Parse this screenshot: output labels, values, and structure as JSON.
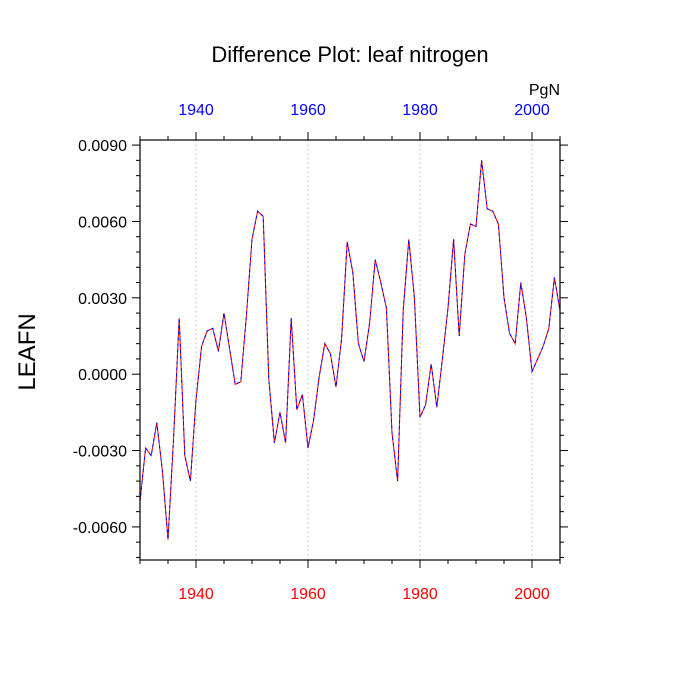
{
  "chart_data": {
    "type": "line",
    "title": "Difference Plot: leaf nitrogen",
    "ylabel": "LEAFN",
    "unit_label": "PgN",
    "xlim": [
      1930,
      2005
    ],
    "ylim": [
      -0.0073,
      0.0092
    ],
    "yticks": [
      -0.006,
      -0.003,
      0.0,
      0.003,
      0.006,
      0.009
    ],
    "ytick_labels": [
      "-0.0060",
      "-0.0030",
      "0.0000",
      "0.0030",
      "0.0060",
      "0.0090"
    ],
    "xticks": [
      1940,
      1960,
      1980,
      2000
    ],
    "xtick_labels": [
      "1940",
      "1960",
      "1980",
      "2000"
    ],
    "top_xticks": [
      1940,
      1960,
      1980,
      2000
    ],
    "top_xtick_labels": [
      "1940",
      "1960",
      "1980",
      "2000"
    ],
    "grid": "vertical dotted at major x ticks",
    "colors": {
      "series_red": "#ff0000",
      "series_blue": "#0000ff",
      "bottom_tick_labels": "#ff0000",
      "top_tick_labels": "#0000ff",
      "grid": "#bbbbbb",
      "frame": "#000000"
    },
    "series": [
      {
        "color": "#ff0000",
        "x": [
          1930,
          1931,
          1932,
          1933,
          1934,
          1935,
          1936,
          1937,
          1938,
          1939,
          1940,
          1941,
          1942,
          1943,
          1944,
          1945,
          1946,
          1947,
          1948,
          1949,
          1950,
          1951,
          1952,
          1953,
          1954,
          1955,
          1956,
          1957,
          1958,
          1959,
          1960,
          1961,
          1962,
          1963,
          1964,
          1965,
          1966,
          1967,
          1968,
          1969,
          1970,
          1971,
          1972,
          1973,
          1974,
          1975,
          1976,
          1977,
          1978,
          1979,
          1980,
          1981,
          1982,
          1983,
          1984,
          1985,
          1986,
          1987,
          1988,
          1989,
          1990,
          1991,
          1992,
          1993,
          1994,
          1995,
          1996,
          1997,
          1998,
          1999,
          2000,
          2001,
          2002,
          2003,
          2004,
          2005
        ],
        "y": [
          -0.005,
          -0.0029,
          -0.0032,
          -0.0019,
          -0.0038,
          -0.0065,
          -0.0025,
          0.0022,
          -0.0032,
          -0.0042,
          -0.001,
          0.0011,
          0.0017,
          0.0018,
          0.0009,
          0.0024,
          0.001,
          -0.0004,
          -0.0003,
          0.0023,
          0.0053,
          0.0064,
          0.0062,
          -0.0002,
          -0.0027,
          -0.0015,
          -0.0027,
          0.0022,
          -0.0014,
          -0.0008,
          -0.0029,
          -0.0018,
          -0.0001,
          0.0012,
          0.0008,
          -0.0005,
          0.0014,
          0.0052,
          0.004,
          0.0012,
          0.0005,
          0.002,
          0.0045,
          0.0036,
          0.0026,
          -0.0023,
          -0.0042,
          0.0025,
          0.0053,
          0.003,
          -0.0017,
          -0.0012,
          0.0004,
          -0.0013,
          0.0006,
          0.0026,
          0.0053,
          0.0015,
          0.0047,
          0.0059,
          0.0058,
          0.0084,
          0.0065,
          0.0064,
          0.0059,
          0.003,
          0.0016,
          0.0012,
          0.0036,
          0.0022,
          0.0001,
          0.0006,
          0.0011,
          0.0018,
          0.0038,
          0.0025
        ]
      },
      {
        "color": "#0000ff",
        "x": [
          1930,
          1931,
          1932,
          1933,
          1934,
          1935,
          1936,
          1937,
          1938,
          1939,
          1940,
          1941,
          1942,
          1943,
          1944,
          1945,
          1946,
          1947,
          1948,
          1949,
          1950,
          1951,
          1952,
          1953,
          1954,
          1955,
          1956,
          1957,
          1958,
          1959,
          1960,
          1961,
          1962,
          1963,
          1964,
          1965,
          1966,
          1967,
          1968,
          1969,
          1970,
          1971,
          1972,
          1973,
          1974,
          1975,
          1976,
          1977,
          1978,
          1979,
          1980,
          1981,
          1982,
          1983,
          1984,
          1985,
          1986,
          1987,
          1988,
          1989,
          1990,
          1991,
          1992,
          1993,
          1994,
          1995,
          1996,
          1997,
          1998,
          1999,
          2000,
          2001,
          2002,
          2003,
          2004,
          2005
        ],
        "y": [
          -0.005,
          -0.0029,
          -0.0032,
          -0.0019,
          -0.0038,
          -0.0065,
          -0.0025,
          0.0022,
          -0.0032,
          -0.0042,
          -0.001,
          0.0011,
          0.0017,
          0.0018,
          0.0009,
          0.0024,
          0.001,
          -0.0004,
          -0.0003,
          0.0023,
          0.0053,
          0.0064,
          0.0062,
          -0.0002,
          -0.0027,
          -0.0015,
          -0.0027,
          0.0022,
          -0.0014,
          -0.0008,
          -0.0029,
          -0.0018,
          -0.0001,
          0.0012,
          0.0008,
          -0.0005,
          0.0014,
          0.0052,
          0.004,
          0.0012,
          0.0005,
          0.002,
          0.0045,
          0.0036,
          0.0026,
          -0.0023,
          -0.0042,
          0.0025,
          0.0053,
          0.003,
          -0.0017,
          -0.0012,
          0.0004,
          -0.0013,
          0.0006,
          0.0026,
          0.0053,
          0.0015,
          0.0047,
          0.0059,
          0.0058,
          0.0084,
          0.0065,
          0.0064,
          0.0059,
          0.003,
          0.0016,
          0.0012,
          0.0036,
          0.0022,
          0.0001,
          0.0006,
          0.0011,
          0.0018,
          0.0038,
          0.0025
        ]
      }
    ]
  }
}
